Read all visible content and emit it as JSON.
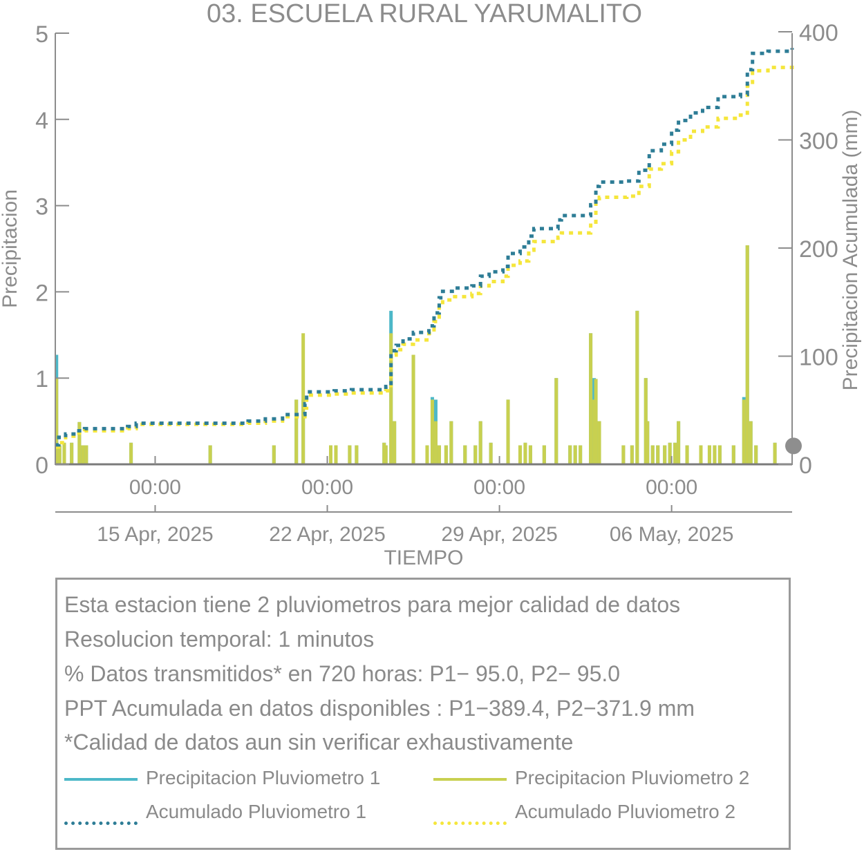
{
  "chart_data": {
    "type": "bar",
    "title": "03. ESCUELA RURAL YARUMALITO",
    "xlabel": "TIEMPO",
    "ylabel_left": "Precipitacion",
    "ylabel_right": "Precipitacion Acumulada (mm)",
    "ylim_left": [
      0,
      5
    ],
    "ylim_right": [
      0,
      400
    ],
    "yticks_left": [
      "0",
      "1",
      "2",
      "3",
      "4",
      "5"
    ],
    "yticks_right": [
      "0",
      "100",
      "200",
      "300",
      "400"
    ],
    "xlim_days": [
      9.8,
      52.6
    ],
    "xticks": [
      {
        "day": 15.6,
        "time": "00:00",
        "date": "15 Apr, 2025"
      },
      {
        "day": 25.6,
        "time": "00:00",
        "date": "22 Apr, 2025"
      },
      {
        "day": 35.6,
        "time": "00:00",
        "date": "29 Apr, 2025"
      },
      {
        "day": 45.6,
        "time": "00:00",
        "date": "06 May, 2025"
      }
    ],
    "colors": {
      "p1_bar": "#4db8c8",
      "p2_bar": "#c8d050",
      "p1_cum": "#2e7d96",
      "p2_cum": "#f5e63c",
      "axis": "#8c8c8c",
      "zero_line": "#7a7a7a",
      "marker": "#8e8e8e"
    },
    "series": [
      {
        "name": "Precipitacion Pluviometro 1",
        "kind": "bar",
        "points": [
          [
            9.87,
            1.27
          ],
          [
            10.05,
            0.22
          ],
          [
            10.32,
            0.25
          ],
          [
            10.75,
            0.25
          ],
          [
            11.2,
            0.49
          ],
          [
            11.4,
            0.22
          ],
          [
            11.6,
            0.22
          ],
          [
            14.2,
            0.25
          ],
          [
            18.8,
            0.22
          ],
          [
            22.5,
            0.22
          ],
          [
            23.8,
            0.75
          ],
          [
            24.2,
            0.75
          ],
          [
            25.8,
            0.22
          ],
          [
            26.1,
            0.22
          ],
          [
            26.9,
            0.22
          ],
          [
            27.3,
            0.22
          ],
          [
            28.9,
            0.25
          ],
          [
            29,
            0.22
          ],
          [
            29.3,
            1.78
          ],
          [
            29.5,
            0.5
          ],
          [
            30.6,
            1.27
          ],
          [
            31.4,
            0.22
          ],
          [
            31.7,
            0.78
          ],
          [
            31.9,
            0.75
          ],
          [
            32.1,
            0.22
          ],
          [
            32.5,
            0.22
          ],
          [
            32.8,
            0.5
          ],
          [
            33.6,
            0.22
          ],
          [
            34.2,
            0.22
          ],
          [
            34.5,
            0.5
          ],
          [
            35.1,
            0.25
          ],
          [
            36.1,
            0.75
          ],
          [
            36.8,
            0.22
          ],
          [
            37.1,
            0.25
          ],
          [
            37.4,
            0.22
          ],
          [
            38.2,
            0.22
          ],
          [
            38.9,
            1.0
          ],
          [
            39.7,
            0.22
          ],
          [
            40,
            0.22
          ],
          [
            40.3,
            0.22
          ],
          [
            40.9,
            1.52
          ],
          [
            41.1,
            1.0
          ],
          [
            41.2,
            0.99
          ],
          [
            41.4,
            0.5
          ],
          [
            42.8,
            0.22
          ],
          [
            43.3,
            0.22
          ],
          [
            43.6,
            1.78
          ],
          [
            44.1,
            1.0
          ],
          [
            44.2,
            0.5
          ],
          [
            44.5,
            0.22
          ],
          [
            44.8,
            0.22
          ],
          [
            45.2,
            0.22
          ],
          [
            45.5,
            0.25
          ],
          [
            45.8,
            0.25
          ],
          [
            46,
            0.5
          ],
          [
            46.5,
            0.22
          ],
          [
            47.3,
            0.22
          ],
          [
            47.8,
            0.22
          ],
          [
            48.1,
            0.22
          ],
          [
            48.4,
            0.22
          ],
          [
            49.2,
            0.22
          ],
          [
            49.8,
            0.78
          ],
          [
            50,
            2.54
          ],
          [
            50.2,
            0.5
          ],
          [
            50.5,
            0.22
          ],
          [
            51.6,
            0.25
          ]
        ]
      },
      {
        "name": "Precipitacion Pluviometro 2",
        "kind": "bar",
        "points": [
          [
            9.87,
            1.0
          ],
          [
            10.05,
            0.22
          ],
          [
            10.32,
            0.25
          ],
          [
            10.75,
            0.25
          ],
          [
            11.2,
            0.49
          ],
          [
            11.4,
            0.22
          ],
          [
            11.6,
            0.22
          ],
          [
            14.2,
            0.25
          ],
          [
            18.8,
            0.22
          ],
          [
            22.5,
            0.22
          ],
          [
            23.8,
            0.75
          ],
          [
            24.2,
            1.52
          ],
          [
            25.8,
            0.22
          ],
          [
            26.1,
            0.22
          ],
          [
            26.9,
            0.22
          ],
          [
            27.3,
            0.22
          ],
          [
            28.9,
            0.25
          ],
          [
            29,
            0.22
          ],
          [
            29.3,
            1.52
          ],
          [
            29.5,
            0.5
          ],
          [
            30.6,
            1.27
          ],
          [
            31.4,
            0.22
          ],
          [
            31.7,
            0.75
          ],
          [
            31.9,
            0.5
          ],
          [
            32.1,
            0.22
          ],
          [
            32.5,
            0.22
          ],
          [
            32.8,
            0.5
          ],
          [
            33.6,
            0.22
          ],
          [
            34.2,
            0.22
          ],
          [
            34.5,
            0.5
          ],
          [
            35.1,
            0.25
          ],
          [
            36.1,
            0.75
          ],
          [
            36.8,
            0.22
          ],
          [
            37.1,
            0.25
          ],
          [
            37.4,
            0.22
          ],
          [
            38.2,
            0.22
          ],
          [
            38.9,
            1.0
          ],
          [
            39.7,
            0.22
          ],
          [
            40,
            0.22
          ],
          [
            40.3,
            0.22
          ],
          [
            40.9,
            1.52
          ],
          [
            41.1,
            0.75
          ],
          [
            41.2,
            0.99
          ],
          [
            41.4,
            0.5
          ],
          [
            42.8,
            0.22
          ],
          [
            43.3,
            0.22
          ],
          [
            43.6,
            1.78
          ],
          [
            44.1,
            1.0
          ],
          [
            44.2,
            0.5
          ],
          [
            44.5,
            0.22
          ],
          [
            44.8,
            0.22
          ],
          [
            45.2,
            0.22
          ],
          [
            45.5,
            0.25
          ],
          [
            45.8,
            0.25
          ],
          [
            46,
            0.5
          ],
          [
            46.5,
            0.22
          ],
          [
            47.3,
            0.22
          ],
          [
            47.8,
            0.22
          ],
          [
            48.1,
            0.22
          ],
          [
            48.4,
            0.22
          ],
          [
            49.2,
            0.22
          ],
          [
            49.8,
            0.75
          ],
          [
            50,
            2.54
          ],
          [
            50.2,
            0.5
          ],
          [
            50.5,
            0.22
          ],
          [
            51.6,
            0.25
          ]
        ]
      },
      {
        "name": "Acumulado Pluviometro 1",
        "kind": "cumulative",
        "points": [
          [
            9.8,
            18
          ],
          [
            10,
            25
          ],
          [
            10.4,
            28
          ],
          [
            11,
            31
          ],
          [
            11.5,
            33
          ],
          [
            14,
            35
          ],
          [
            14.5,
            38
          ],
          [
            21,
            40
          ],
          [
            22,
            42
          ],
          [
            23,
            46
          ],
          [
            24.3,
            56
          ],
          [
            24.4,
            67
          ],
          [
            26,
            68
          ],
          [
            27,
            69
          ],
          [
            29,
            72
          ],
          [
            29.3,
            105
          ],
          [
            29.6,
            110
          ],
          [
            30,
            116
          ],
          [
            30.6,
            122
          ],
          [
            31.5,
            128
          ],
          [
            31.8,
            140
          ],
          [
            32.1,
            154
          ],
          [
            32.3,
            160
          ],
          [
            33,
            163
          ],
          [
            34,
            165
          ],
          [
            34.5,
            174
          ],
          [
            35,
            178
          ],
          [
            35.8,
            183
          ],
          [
            36.1,
            195
          ],
          [
            36.8,
            201
          ],
          [
            37.3,
            211
          ],
          [
            37.6,
            218
          ],
          [
            39,
            226
          ],
          [
            39.2,
            230
          ],
          [
            40.9,
            240
          ],
          [
            41.2,
            257
          ],
          [
            41.4,
            261
          ],
          [
            43,
            262
          ],
          [
            43.7,
            272
          ],
          [
            44.3,
            290
          ],
          [
            45,
            296
          ],
          [
            45.6,
            309
          ],
          [
            46,
            318
          ],
          [
            46.7,
            325
          ],
          [
            47.4,
            330
          ],
          [
            48.3,
            340
          ],
          [
            49.6,
            342
          ],
          [
            50,
            365
          ],
          [
            50.3,
            380
          ],
          [
            51.2,
            382
          ],
          [
            52.6,
            385
          ]
        ]
      },
      {
        "name": "Acumulado Pluviometro 2",
        "kind": "cumulative",
        "points": [
          [
            9.8,
            16
          ],
          [
            10,
            20
          ],
          [
            10.4,
            26
          ],
          [
            11,
            29
          ],
          [
            11.5,
            31
          ],
          [
            14,
            33
          ],
          [
            14.5,
            37
          ],
          [
            21,
            38
          ],
          [
            22,
            40
          ],
          [
            23,
            44
          ],
          [
            24.3,
            52
          ],
          [
            24.4,
            64
          ],
          [
            26,
            65
          ],
          [
            27,
            66
          ],
          [
            29,
            68
          ],
          [
            29.3,
            101
          ],
          [
            29.6,
            106
          ],
          [
            30,
            111
          ],
          [
            30.6,
            115
          ],
          [
            31.5,
            121
          ],
          [
            31.8,
            132
          ],
          [
            32.1,
            147
          ],
          [
            32.3,
            152
          ],
          [
            33,
            155
          ],
          [
            34,
            158
          ],
          [
            34.5,
            165
          ],
          [
            35,
            169
          ],
          [
            35.8,
            174
          ],
          [
            36.1,
            184
          ],
          [
            36.8,
            188
          ],
          [
            37.3,
            198
          ],
          [
            37.6,
            206
          ],
          [
            39,
            210
          ],
          [
            39.2,
            214
          ],
          [
            40.9,
            224
          ],
          [
            41.2,
            242
          ],
          [
            41.4,
            247
          ],
          [
            43,
            248
          ],
          [
            43.7,
            257
          ],
          [
            44.3,
            273
          ],
          [
            45,
            278
          ],
          [
            45.6,
            289
          ],
          [
            46,
            300
          ],
          [
            46.7,
            308
          ],
          [
            47.4,
            312
          ],
          [
            48.3,
            320
          ],
          [
            49.6,
            323
          ],
          [
            50,
            350
          ],
          [
            50.3,
            364
          ],
          [
            51.2,
            367
          ],
          [
            52.6,
            371
          ]
        ]
      }
    ],
    "marker": {
      "day": 52.6,
      "value": 17
    }
  },
  "info": {
    "line1": "Esta estacion tiene 2 pluviometros para mejor calidad de datos",
    "line2": "Resolucion temporal: 1 minutos",
    "line3": "% Datos transmitidos* en 720 horas: P1− 95.0, P2− 95.0",
    "line4": "PPT Acumulada en datos disponibles : P1−389.4, P2−371.9 mm",
    "line5": "*Calidad de datos aun sin verificar exhaustivamente"
  },
  "legend": [
    {
      "label": "Precipitacion Pluviometro 1",
      "style": "solid",
      "color": "#4db8c8"
    },
    {
      "label": "Precipitacion Pluviometro 2",
      "style": "solid",
      "color": "#c8d050"
    },
    {
      "label": "Acumulado Pluviometro 1",
      "style": "dotted",
      "color": "#2e7d96"
    },
    {
      "label": "Acumulado Pluviometro 2",
      "style": "dotted",
      "color": "#f5e63c"
    }
  ]
}
